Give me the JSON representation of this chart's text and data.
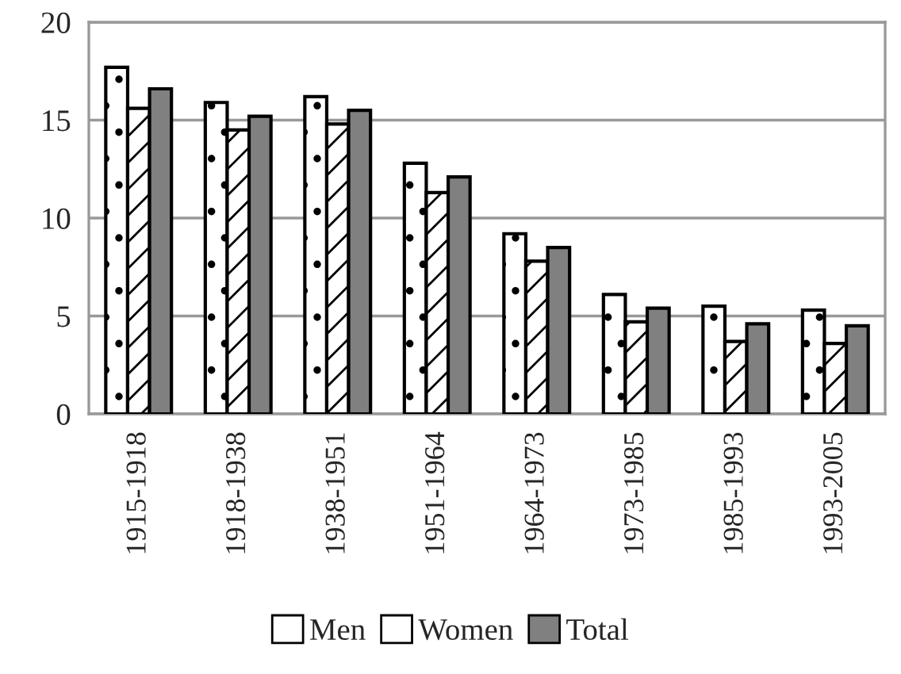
{
  "chart_data": {
    "type": "bar",
    "categories": [
      "1915-1918",
      "1918-1938",
      "1938-1951",
      "1951-1964",
      "1964-1973",
      "1973-1985",
      "1985-1993",
      "1993-2005"
    ],
    "series": [
      {
        "name": "Men",
        "color": "#ffffff",
        "values": [
          17.7,
          15.9,
          16.2,
          12.8,
          9.2,
          6.1,
          5.5,
          5.3
        ]
      },
      {
        "name": "Women",
        "color": "#ffffff",
        "values": [
          15.6,
          14.5,
          14.8,
          11.3,
          7.8,
          4.7,
          3.7,
          3.6
        ]
      },
      {
        "name": "Total",
        "color": "#808080",
        "values": [
          16.6,
          15.2,
          15.5,
          12.1,
          8.5,
          5.4,
          4.6,
          4.5
        ]
      }
    ],
    "ylim": [
      0,
      20
    ],
    "yticks": [
      0,
      5,
      10,
      15,
      20
    ],
    "grid": "y",
    "legend": "bottom"
  }
}
